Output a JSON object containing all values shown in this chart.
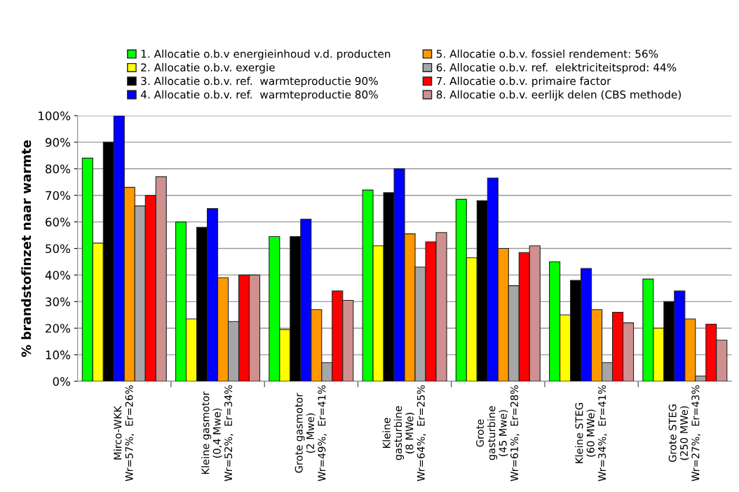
{
  "chart_data": {
    "type": "bar",
    "ylabel": "% brandstofinzet naar warmte",
    "categories": [
      "Mirco-WKK\nWr=57%,  Er=26%",
      "Kleine gasmotor\n(0,4 Mwe)\nWr=52%,  Er=34%",
      "Grote gasmotor\n(2 Mwe)\nWr=49%,  Er=41%",
      "Kleine\ngasturbine\n(8 MWe)\nWr=64%,  Er=25%",
      "Grote\ngasturbine\n(45 Mwe)\nWr=61%,  Er=28%",
      "Kleine STEG\n(60 MWe)\nWr=34%,  Er=41%",
      "Grote STEG\n(250 MWe)\nWr=27%,  Er=43%"
    ],
    "series": [
      {
        "name": "1. Allocatie o.b.v energieinhoud v.d. producten",
        "color": "#00ff00",
        "values": [
          84,
          60,
          54.5,
          72,
          68.5,
          45,
          38.5
        ]
      },
      {
        "name": "2. Allocatie o.b.v. exergie",
        "color": "#ffff00",
        "values": [
          52,
          23.5,
          19.5,
          51,
          46.5,
          25,
          20
        ]
      },
      {
        "name": "3. Allocatie o.b.v. ref.  warmteproductie 90%",
        "color": "#000000",
        "values": [
          90,
          58,
          54.5,
          71,
          68,
          38,
          30
        ]
      },
      {
        "name": "4. Allocatie o.b.v. ref.  warmteproductie 80%",
        "color": "#0000ff",
        "values": [
          100,
          65,
          61,
          80,
          76.5,
          42.5,
          34
        ]
      },
      {
        "name": "5. Allocatie o.b.v. fossiel rendement: 56%",
        "color": "#ff9900",
        "values": [
          73,
          39,
          27,
          55.5,
          50,
          27,
          23.5
        ]
      },
      {
        "name": "6. Allocatie o.b.v. ref.  elektriciteitsprod: 44%",
        "color": "#a6a6a6",
        "values": [
          66,
          22.5,
          7,
          43,
          36,
          7,
          2
        ]
      },
      {
        "name": "7. Allocatie o.b.v. primaire factor",
        "color": "#ff0000",
        "values": [
          70,
          40,
          34,
          52.5,
          48.5,
          26,
          21.5
        ]
      },
      {
        "name": "8. Allocatie o.b.v. eerlijk delen (CBS methode)",
        "color": "#d09090",
        "values": [
          77,
          40,
          30.5,
          56,
          51,
          22,
          15.5
        ]
      }
    ],
    "ylim": [
      0,
      100
    ],
    "yticks": [
      {
        "value": 0,
        "label": "0%"
      },
      {
        "value": 10,
        "label": "10%"
      },
      {
        "value": 20,
        "label": "20%"
      },
      {
        "value": 30,
        "label": "30%"
      },
      {
        "value": 40,
        "label": "40%"
      },
      {
        "value": 50,
        "label": "50%"
      },
      {
        "value": 60,
        "label": "60%"
      },
      {
        "value": 70,
        "label": "70%"
      },
      {
        "value": 80,
        "label": "80%"
      },
      {
        "value": 90,
        "label": "90%"
      },
      {
        "value": 100,
        "label": "100%"
      }
    ],
    "grid": "y",
    "legend": "top"
  }
}
